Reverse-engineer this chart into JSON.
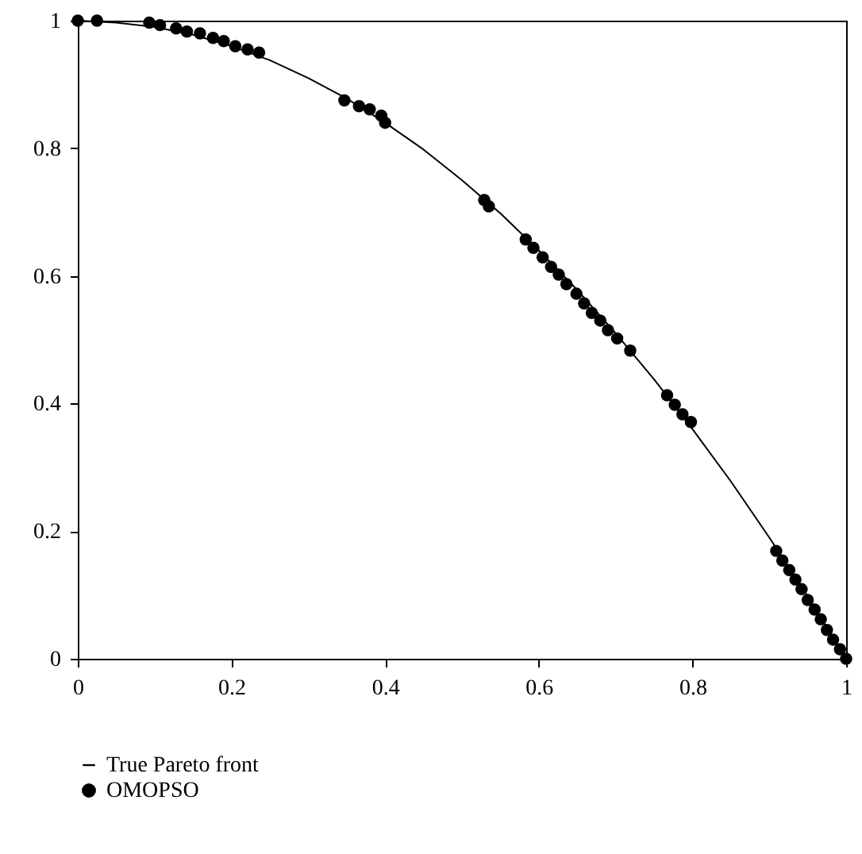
{
  "chart_data": {
    "type": "scatter",
    "xlim": [
      0,
      1
    ],
    "ylim": [
      0,
      1
    ],
    "xticks": [
      0,
      0.2,
      0.4,
      0.6,
      0.8,
      1
    ],
    "yticks": [
      0,
      0.2,
      0.4,
      0.6,
      0.8,
      1
    ],
    "grid": false,
    "legend": "bottom left",
    "series": [
      {
        "name": "True Pareto front",
        "type": "line",
        "color": "#000000",
        "line_style": "solid",
        "marker": "none",
        "x": [
          0,
          0.05,
          0.1,
          0.15,
          0.2,
          0.25,
          0.3,
          0.35,
          0.4,
          0.45,
          0.5,
          0.55,
          0.6,
          0.65,
          0.7,
          0.75,
          0.8,
          0.85,
          0.9,
          0.95,
          1
        ],
        "values": [
          1,
          0.997,
          0.99,
          0.978,
          0.96,
          0.938,
          0.91,
          0.878,
          0.84,
          0.798,
          0.75,
          0.698,
          0.64,
          0.578,
          0.51,
          0.438,
          0.36,
          0.278,
          0.19,
          0.098,
          0
        ]
      },
      {
        "name": "OMOPSO",
        "color": "#000000",
        "marker": "circle",
        "x": [
          0,
          0.025,
          0.093,
          0.107,
          0.128,
          0.142,
          0.159,
          0.176,
          0.19,
          0.205,
          0.221,
          0.236,
          0.347,
          0.366,
          0.38,
          0.395,
          0.4,
          0.529,
          0.535,
          0.583,
          0.593,
          0.605,
          0.616,
          0.626,
          0.636,
          0.649,
          0.659,
          0.669,
          0.68,
          0.69,
          0.702,
          0.719,
          0.767,
          0.777,
          0.787,
          0.798,
          0.909,
          0.917,
          0.926,
          0.934,
          0.942,
          0.95,
          0.959,
          0.967,
          0.975,
          0.983,
          0.992,
          1
        ],
        "values": [
          1,
          1,
          0.997,
          0.993,
          0.988,
          0.983,
          0.98,
          0.973,
          0.968,
          0.96,
          0.955,
          0.95,
          0.875,
          0.866,
          0.861,
          0.851,
          0.84,
          0.719,
          0.709,
          0.657,
          0.644,
          0.629,
          0.614,
          0.602,
          0.587,
          0.572,
          0.557,
          0.542,
          0.53,
          0.515,
          0.502,
          0.483,
          0.413,
          0.398,
          0.383,
          0.371,
          0.169,
          0.154,
          0.139,
          0.124,
          0.109,
          0.092,
          0.077,
          0.062,
          0.045,
          0.03,
          0.015,
          0
        ]
      }
    ]
  }
}
